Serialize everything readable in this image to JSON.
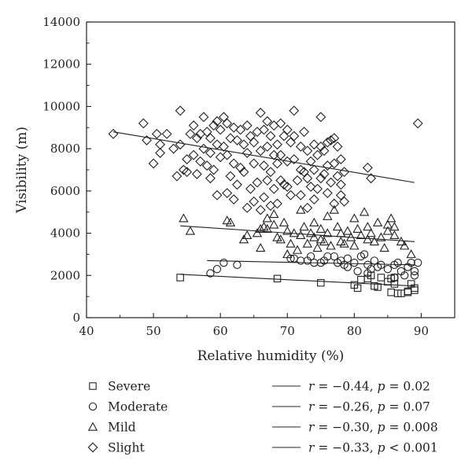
{
  "chart_data": {
    "type": "scatter",
    "xlabel": "Relative humidity (%)",
    "ylabel": "Visibility (m)",
    "xlim": [
      40,
      95
    ],
    "ylim": [
      0,
      14000
    ],
    "xticks": [
      40,
      50,
      60,
      70,
      80,
      90
    ],
    "yticks": [
      0,
      2000,
      4000,
      6000,
      8000,
      10000,
      12000,
      14000
    ],
    "grid": false,
    "legend_position": "bottom",
    "series": [
      {
        "name": "Severe",
        "marker": "square",
        "stat": {
          "r_symbol": "r",
          "r_text": " = −0.44, ",
          "p_symbol": "p",
          "p_text": " = 0.02"
        },
        "fit": [
          [
            54,
            2050
          ],
          [
            89,
            1500
          ]
        ],
        "points": [
          [
            54,
            1900
          ],
          [
            68.5,
            1850
          ],
          [
            75,
            1650
          ],
          [
            80,
            1550
          ],
          [
            80.5,
            1400
          ],
          [
            81,
            1800
          ],
          [
            82,
            1850
          ],
          [
            82.5,
            2000
          ],
          [
            83,
            1500
          ],
          [
            83.5,
            1450
          ],
          [
            84,
            1900
          ],
          [
            85,
            1700
          ],
          [
            85.5,
            1850
          ],
          [
            85.5,
            1200
          ],
          [
            86,
            1600
          ],
          [
            86,
            1900
          ],
          [
            86.5,
            1150
          ],
          [
            87,
            1150
          ],
          [
            88,
            1250
          ],
          [
            88,
            1200
          ],
          [
            88.5,
            1600
          ],
          [
            89,
            1400
          ],
          [
            89,
            1300
          ]
        ]
      },
      {
        "name": "Moderate",
        "marker": "circle",
        "stat": {
          "r_symbol": "r",
          "r_text": " = −0.26, ",
          "p_symbol": "p",
          "p_text": " = 0.07"
        },
        "fit": [
          [
            58,
            2700
          ],
          [
            89,
            2500
          ]
        ],
        "points": [
          [
            58.5,
            2100
          ],
          [
            59.5,
            2300
          ],
          [
            60.5,
            2600
          ],
          [
            62.5,
            2500
          ],
          [
            70.5,
            2800
          ],
          [
            71,
            2800
          ],
          [
            72,
            2700
          ],
          [
            73,
            2700
          ],
          [
            73.5,
            2900
          ],
          [
            74,
            2600
          ],
          [
            75,
            2600
          ],
          [
            75.5,
            2700
          ],
          [
            76,
            2900
          ],
          [
            77,
            2900
          ],
          [
            77.5,
            2600
          ],
          [
            78,
            2700
          ],
          [
            78.5,
            2500
          ],
          [
            79,
            2400
          ],
          [
            79,
            2800
          ],
          [
            80,
            2600
          ],
          [
            80.5,
            2200
          ],
          [
            81,
            2900
          ],
          [
            81.5,
            3000
          ],
          [
            82,
            2100
          ],
          [
            82,
            2500
          ],
          [
            82.5,
            2300
          ],
          [
            83,
            2700
          ],
          [
            83.5,
            2400
          ],
          [
            84,
            2500
          ],
          [
            85,
            2300
          ],
          [
            86,
            2500
          ],
          [
            86,
            1900
          ],
          [
            86.5,
            2600
          ],
          [
            87,
            2200
          ],
          [
            87.5,
            2000
          ],
          [
            88,
            2400
          ],
          [
            88.5,
            2600
          ],
          [
            89,
            2000
          ],
          [
            89,
            2200
          ],
          [
            89.5,
            2600
          ]
        ]
      },
      {
        "name": "Mild",
        "marker": "triangle",
        "stat": {
          "r_symbol": "r",
          "r_text": " = −0.30, ",
          "p_symbol": "p",
          "p_text": " = 0.008"
        },
        "fit": [
          [
            54,
            4350
          ],
          [
            89,
            3600
          ]
        ],
        "points": [
          [
            54.5,
            4700
          ],
          [
            55.5,
            4100
          ],
          [
            61,
            4600
          ],
          [
            61.5,
            4500
          ],
          [
            63.5,
            3700
          ],
          [
            64,
            3900
          ],
          [
            65.5,
            4000
          ],
          [
            66,
            4200
          ],
          [
            66,
            3300
          ],
          [
            66.5,
            4300
          ],
          [
            67,
            4700
          ],
          [
            67,
            4200
          ],
          [
            68,
            4900
          ],
          [
            68,
            4400
          ],
          [
            68.5,
            3800
          ],
          [
            69,
            3700
          ],
          [
            69.5,
            4500
          ],
          [
            70,
            4100
          ],
          [
            70,
            3000
          ],
          [
            70.5,
            3500
          ],
          [
            71,
            4000
          ],
          [
            71.5,
            3200
          ],
          [
            72,
            5100
          ],
          [
            72,
            3900
          ],
          [
            72.5,
            4300
          ],
          [
            73,
            3500
          ],
          [
            73.5,
            4000
          ],
          [
            74,
            4500
          ],
          [
            74,
            3800
          ],
          [
            74.5,
            3300
          ],
          [
            75,
            4200
          ],
          [
            75,
            3700
          ],
          [
            75.5,
            3600
          ],
          [
            76,
            4800
          ],
          [
            76,
            4000
          ],
          [
            76.5,
            3400
          ],
          [
            77,
            5100
          ],
          [
            77.5,
            4300
          ],
          [
            78,
            4000
          ],
          [
            78,
            3600
          ],
          [
            78.5,
            3500
          ],
          [
            79,
            4100
          ],
          [
            79.5,
            3800
          ],
          [
            80,
            4700
          ],
          [
            80,
            3400
          ],
          [
            80.5,
            4200
          ],
          [
            81,
            3900
          ],
          [
            81.5,
            5000
          ],
          [
            82,
            4300
          ],
          [
            82,
            3700
          ],
          [
            82.5,
            4000
          ],
          [
            83,
            3600
          ],
          [
            83.5,
            4500
          ],
          [
            84,
            3800
          ],
          [
            84.5,
            3300
          ],
          [
            85,
            4400
          ],
          [
            85,
            4100
          ],
          [
            85.5,
            4700
          ],
          [
            86,
            4300
          ],
          [
            86,
            3900
          ],
          [
            87,
            3600
          ],
          [
            87.5,
            3400
          ],
          [
            88.5,
            3000
          ]
        ]
      },
      {
        "name": "Slight",
        "marker": "diamond",
        "stat": {
          "r_symbol": "r",
          "r_text": " = −0.33, ",
          "p_symbol": "p",
          "p_text": " < 0.001"
        },
        "fit": [
          [
            44,
            8800
          ],
          [
            89,
            6400
          ]
        ],
        "points": [
          [
            44,
            8700
          ],
          [
            48.5,
            9200
          ],
          [
            49,
            8400
          ],
          [
            50,
            7300
          ],
          [
            50.5,
            8700
          ],
          [
            51,
            8200
          ],
          [
            51,
            7800
          ],
          [
            52,
            8700
          ],
          [
            53,
            8000
          ],
          [
            53.5,
            6700
          ],
          [
            54,
            9800
          ],
          [
            54,
            8200
          ],
          [
            54.5,
            7000
          ],
          [
            55,
            7500
          ],
          [
            55,
            6900
          ],
          [
            55.5,
            8700
          ],
          [
            56,
            9100
          ],
          [
            56,
            7700
          ],
          [
            56.5,
            8500
          ],
          [
            56.5,
            6800
          ],
          [
            57,
            8700
          ],
          [
            57,
            7400
          ],
          [
            57.5,
            9500
          ],
          [
            57.5,
            8000
          ],
          [
            58,
            8800
          ],
          [
            58,
            7200
          ],
          [
            58.5,
            8500
          ],
          [
            58.5,
            7800
          ],
          [
            58.5,
            6600
          ],
          [
            59,
            9100
          ],
          [
            59,
            7000
          ],
          [
            59.5,
            9300
          ],
          [
            59.5,
            8200
          ],
          [
            59.5,
            5800
          ],
          [
            60,
            8900
          ],
          [
            60,
            7600
          ],
          [
            60.5,
            9500
          ],
          [
            60.5,
            8100
          ],
          [
            61,
            9200
          ],
          [
            61,
            7700
          ],
          [
            61,
            5900
          ],
          [
            61.5,
            8500
          ],
          [
            61.5,
            6700
          ],
          [
            62,
            9000
          ],
          [
            62,
            7300
          ],
          [
            62,
            5600
          ],
          [
            62.5,
            8400
          ],
          [
            62.5,
            6300
          ],
          [
            63,
            8900
          ],
          [
            63,
            7100
          ],
          [
            63.5,
            8200
          ],
          [
            63.5,
            6900
          ],
          [
            64,
            9100
          ],
          [
            64,
            7800
          ],
          [
            64,
            5200
          ],
          [
            64.5,
            8600
          ],
          [
            64.5,
            6100
          ],
          [
            65,
            8300
          ],
          [
            65,
            7300
          ],
          [
            65,
            5500
          ],
          [
            65.5,
            8800
          ],
          [
            65.5,
            6400
          ],
          [
            66,
            9700
          ],
          [
            66,
            7900
          ],
          [
            66,
            5100
          ],
          [
            66.5,
            8900
          ],
          [
            66.5,
            7200
          ],
          [
            66.5,
            5700
          ],
          [
            67,
            9300
          ],
          [
            67,
            8100
          ],
          [
            67,
            6500
          ],
          [
            67.5,
            8600
          ],
          [
            67.5,
            6900
          ],
          [
            67.5,
            5300
          ],
          [
            68,
            9100
          ],
          [
            68,
            7700
          ],
          [
            68,
            6100
          ],
          [
            68.5,
            8200
          ],
          [
            68.5,
            7300
          ],
          [
            68.5,
            5400
          ],
          [
            69,
            9200
          ],
          [
            69,
            7700
          ],
          [
            69,
            6500
          ],
          [
            69.5,
            8600
          ],
          [
            69.5,
            6300
          ],
          [
            70,
            8900
          ],
          [
            70,
            7400
          ],
          [
            70,
            6200
          ],
          [
            70.5,
            8300
          ],
          [
            70.5,
            5800
          ],
          [
            71,
            9800
          ],
          [
            71,
            8600
          ],
          [
            71,
            7500
          ],
          [
            71.5,
            6500
          ],
          [
            72,
            8100
          ],
          [
            72,
            7000
          ],
          [
            72,
            5800
          ],
          [
            72.5,
            8800
          ],
          [
            72.5,
            6900
          ],
          [
            73,
            7900
          ],
          [
            73,
            6600
          ],
          [
            73,
            5200
          ],
          [
            73.5,
            7400
          ],
          [
            73.5,
            6200
          ],
          [
            74,
            8200
          ],
          [
            74,
            7000
          ],
          [
            74,
            5600
          ],
          [
            74.5,
            7700
          ],
          [
            74.5,
            6100
          ],
          [
            75,
            9500
          ],
          [
            75,
            8100
          ],
          [
            75,
            6600
          ],
          [
            75.5,
            7900
          ],
          [
            75.5,
            6800
          ],
          [
            76,
            8300
          ],
          [
            76,
            7200
          ],
          [
            76,
            5900
          ],
          [
            76.5,
            8400
          ],
          [
            76.5,
            6400
          ],
          [
            77,
            8500
          ],
          [
            77,
            7300
          ],
          [
            77,
            5400
          ],
          [
            77.5,
            8100
          ],
          [
            77.5,
            6700
          ],
          [
            78,
            7500
          ],
          [
            78,
            6300
          ],
          [
            78,
            5800
          ],
          [
            78.5,
            6900
          ],
          [
            78.5,
            5500
          ],
          [
            82,
            7100
          ],
          [
            82.5,
            6600
          ],
          [
            89.5,
            9200
          ]
        ]
      }
    ]
  }
}
